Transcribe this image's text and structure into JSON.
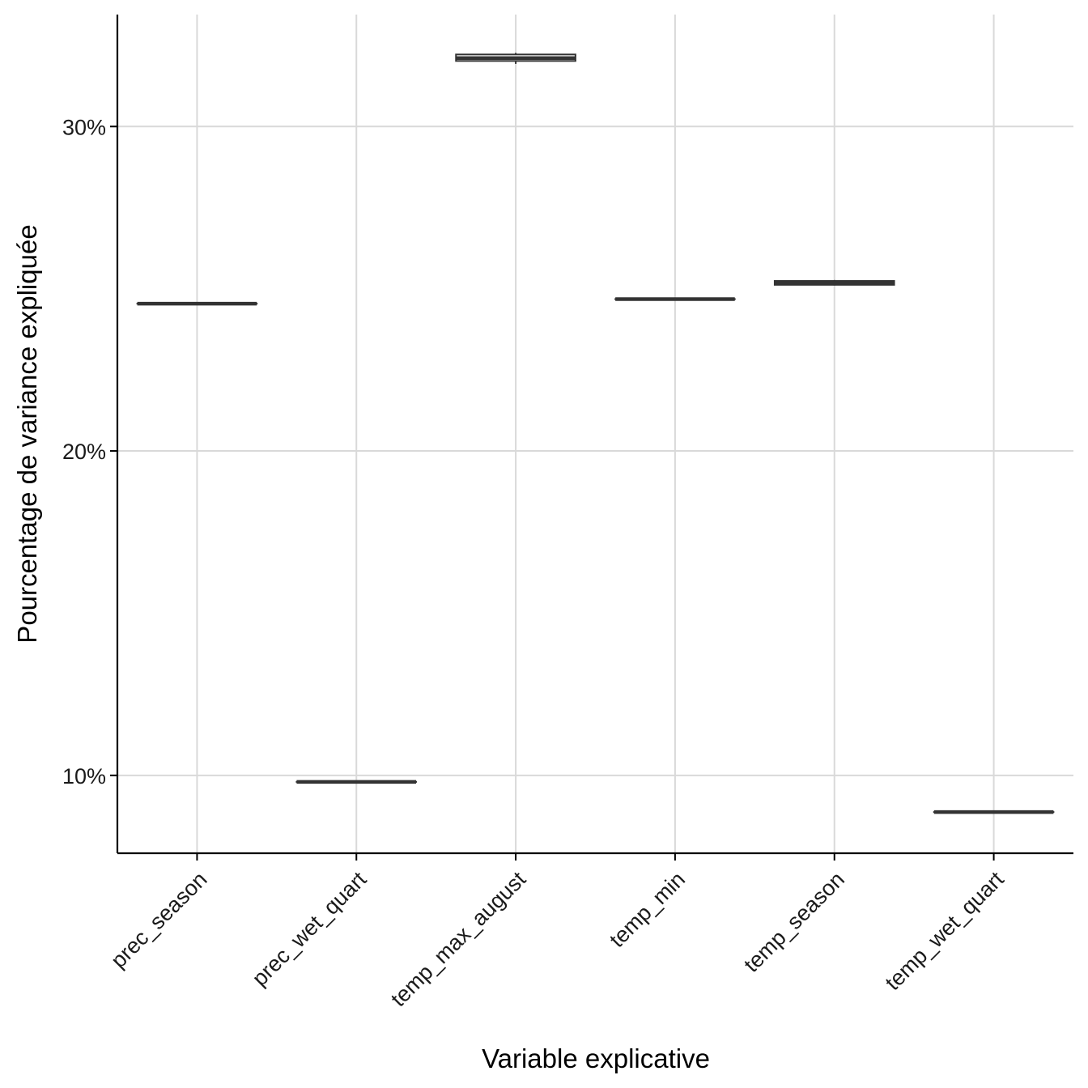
{
  "chart_data": {
    "type": "box",
    "title": "",
    "xlabel": "Variable explicative",
    "ylabel": "Pourcentage de variance expliquée",
    "categories": [
      "prec_season",
      "prec_wet_quart",
      "temp_max_august",
      "temp_min",
      "temp_season",
      "temp_wet_quart"
    ],
    "boxes": [
      {
        "category": "prec_season",
        "q1": 24.54,
        "median": 24.54,
        "q3": 24.54,
        "whisker_low": 24.54,
        "whisker_high": 24.54
      },
      {
        "category": "prec_wet_quart",
        "q1": 9.8,
        "median": 9.8,
        "q3": 9.8,
        "whisker_low": 9.8,
        "whisker_high": 9.8
      },
      {
        "category": "temp_max_august",
        "q1": 32.02,
        "median": 32.11,
        "q3": 32.22,
        "whisker_low": 31.93,
        "whisker_high": 32.27
      },
      {
        "category": "temp_min",
        "q1": 24.68,
        "median": 24.68,
        "q3": 24.68,
        "whisker_low": 24.68,
        "whisker_high": 24.68
      },
      {
        "category": "temp_season",
        "q1": 25.12,
        "median": 25.18,
        "q3": 25.24,
        "whisker_low": 25.1,
        "whisker_high": 25.27
      },
      {
        "category": "temp_wet_quart",
        "q1": 8.87,
        "median": 8.87,
        "q3": 8.87,
        "whisker_low": 8.87,
        "whisker_high": 8.87
      }
    ],
    "y_ticks": [
      10,
      20,
      30
    ],
    "y_tick_labels": [
      "10%",
      "20%",
      "30%"
    ],
    "ylim": [
      7.6,
      33.45
    ],
    "grid": true,
    "colors": {
      "box_line": "#333333",
      "grid": "#d9d9d9",
      "axis": "#000000"
    }
  }
}
